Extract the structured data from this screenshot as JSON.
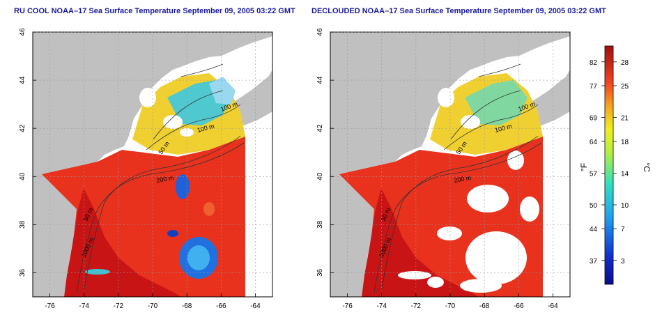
{
  "titles": {
    "left": "RU COOL NOAA–17 Sea Surface Temperature September 09, 2005 03:22 GMT",
    "right": "DECLOUDED NOAA–17 Sea Surface Temperature September 09, 2005 03:22 GMT"
  },
  "axes": {
    "x_ticks": [
      "-76",
      "-74",
      "-72",
      "-70",
      "-68",
      "-66",
      "-64"
    ],
    "y_ticks": [
      "36",
      "38",
      "40",
      "42",
      "44",
      "46"
    ]
  },
  "contours": [
    "100 m",
    "100 m",
    "50 m",
    "200 m",
    "50 m",
    "1000 m"
  ],
  "colorbar": {
    "f_label": "°F",
    "c_label": "°C",
    "f_ticks": [
      "82",
      "77",
      "69",
      "64",
      "57",
      "50",
      "44",
      "37"
    ],
    "c_ticks": [
      "28",
      "25",
      "21",
      "18",
      "14",
      "10",
      "7",
      "3"
    ]
  },
  "colors": {
    "land": "#c0c0c0",
    "warm": "#e8321e",
    "hot": "#c81414",
    "cloud": "#ffffff",
    "title": "#1a1a9e"
  }
}
